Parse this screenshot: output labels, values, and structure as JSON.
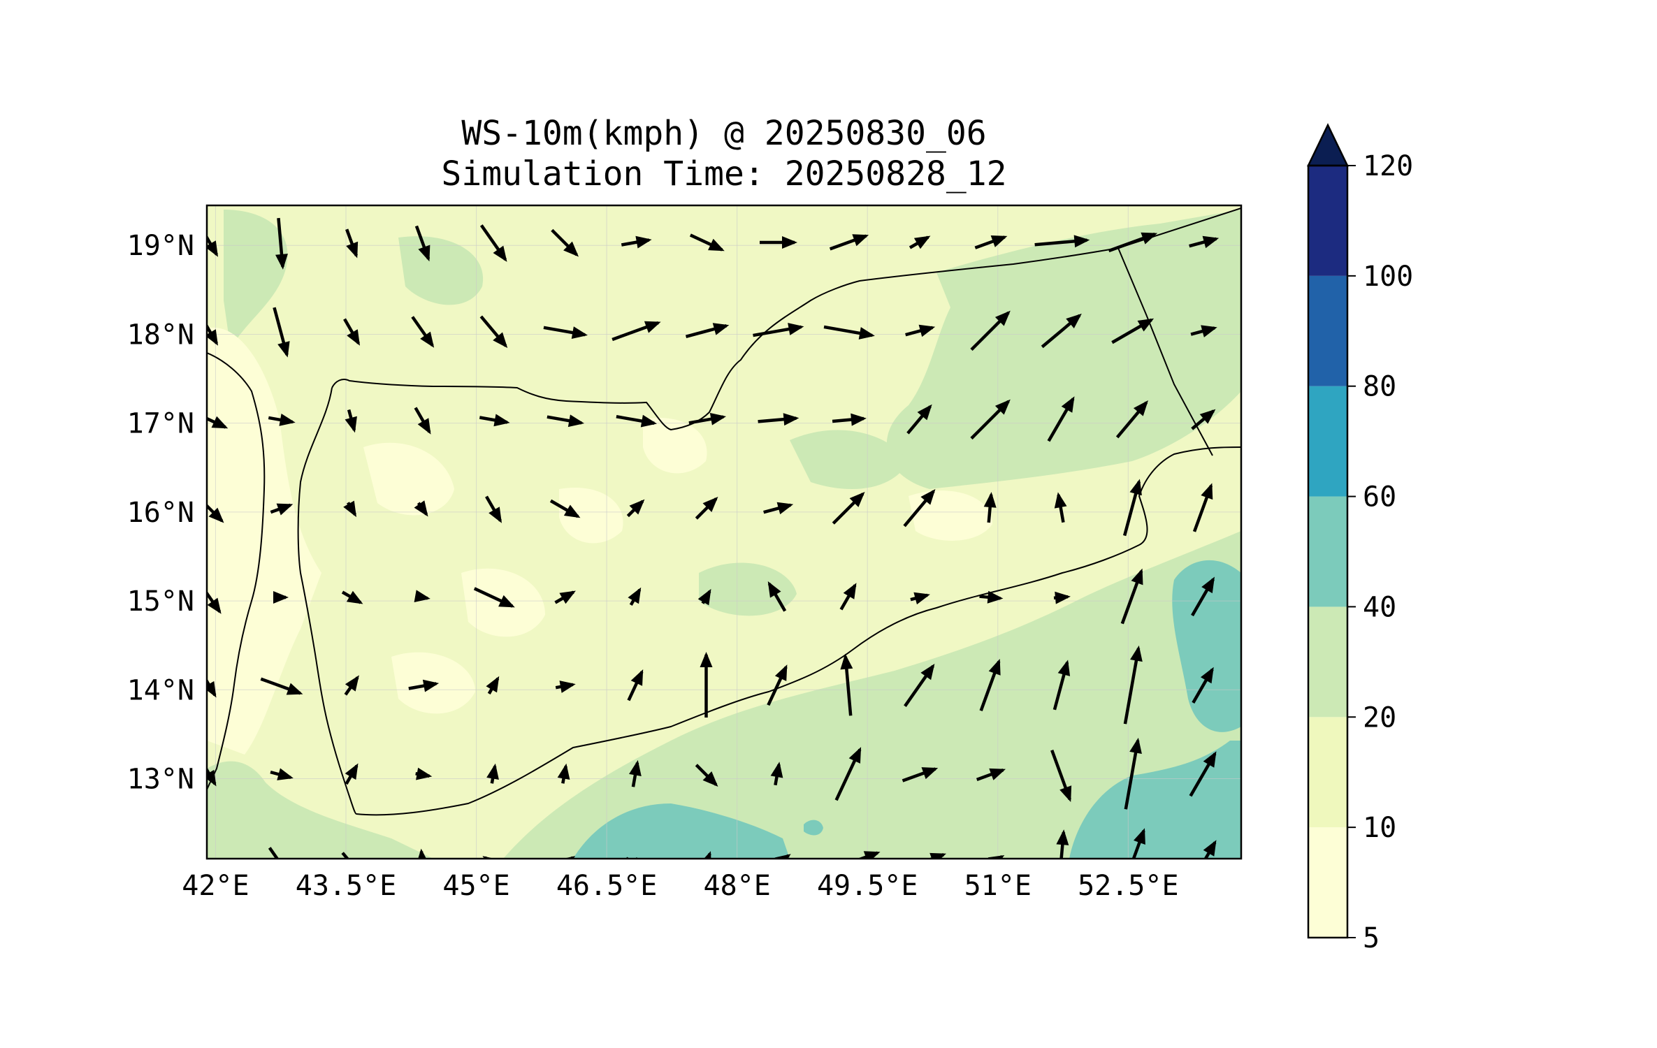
{
  "title": {
    "line1": "WS-10m(kmph) @ 20250830_06",
    "line2": "Simulation Time: 20250828_12"
  },
  "map": {
    "variable": "10 m wind speed (kmph) with wind vectors",
    "lon_range": [
      41.9,
      53.8
    ],
    "lat_range": [
      12.1,
      19.45
    ],
    "xticks": [
      {
        "value": 42.0,
        "label": "42°E"
      },
      {
        "value": 43.5,
        "label": "43.5°E"
      },
      {
        "value": 45.0,
        "label": "45°E"
      },
      {
        "value": 46.5,
        "label": "46.5°E"
      },
      {
        "value": 48.0,
        "label": "48°E"
      },
      {
        "value": 49.5,
        "label": "49.5°E"
      },
      {
        "value": 51.0,
        "label": "51°E"
      },
      {
        "value": 52.5,
        "label": "52.5°E"
      }
    ],
    "yticks": [
      {
        "value": 19,
        "label": "19°N"
      },
      {
        "value": 18,
        "label": "18°N"
      },
      {
        "value": 17,
        "label": "17°N"
      },
      {
        "value": 16,
        "label": "16°N"
      },
      {
        "value": 15,
        "label": "15°N"
      },
      {
        "value": 14,
        "label": "14°N"
      },
      {
        "value": 13,
        "label": "13°N"
      }
    ],
    "grid": true,
    "background_color": "#f0f8c4"
  },
  "colorbar": {
    "extend": "max",
    "ticks": [
      "5",
      "10",
      "20",
      "40",
      "60",
      "80",
      "100",
      "120"
    ],
    "levels": [
      5,
      10,
      20,
      40,
      60,
      80,
      100,
      120
    ],
    "colors": [
      "#fdfed6",
      "#eff8bd",
      "#cce9b5",
      "#7ccbbb",
      "#2fa5c1",
      "#2162a9",
      "#1c2b80",
      "#0b1e52"
    ]
  }
}
